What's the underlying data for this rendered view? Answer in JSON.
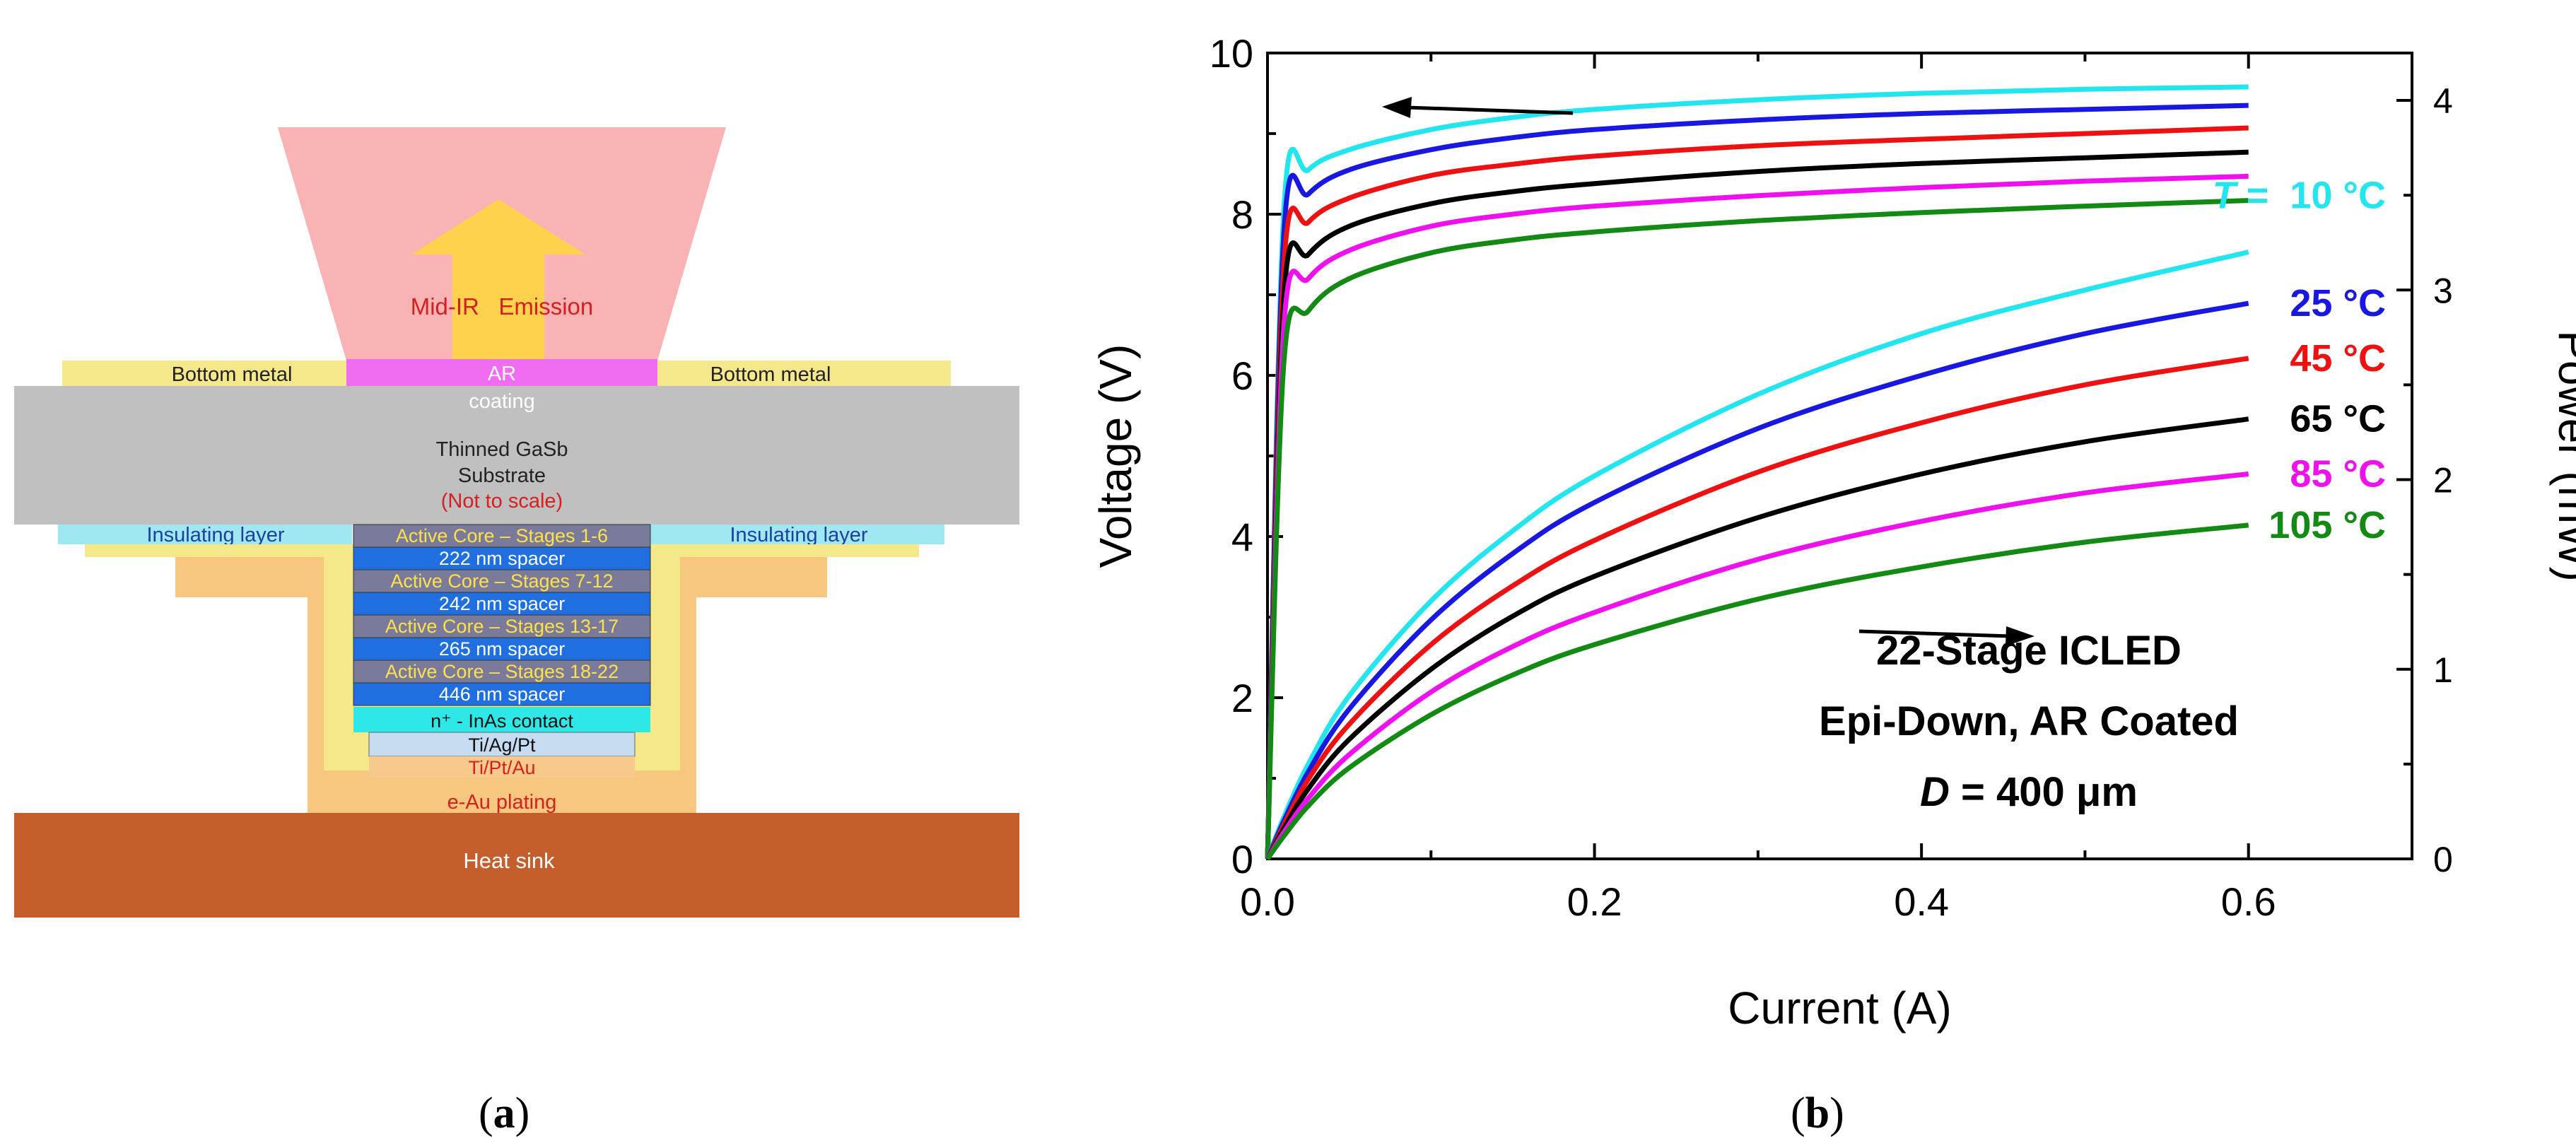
{
  "panel_a": {
    "label_open": "(",
    "label_letter": "a",
    "label_close": ")",
    "emission": "Mid-IR   Emission",
    "ar": "AR",
    "coating": "coating",
    "bottom_metal": "Bottom metal",
    "substrate_line1": "Thinned GaSb",
    "substrate_line2": "Substrate",
    "substrate_note": "(Not to scale)",
    "insulating": "Insulating layer",
    "layers": [
      {
        "text": "Active Core – Stages 1-6",
        "kind": "core"
      },
      {
        "text": "222 nm spacer",
        "kind": "spacer"
      },
      {
        "text": "Active Core – Stages 7-12",
        "kind": "core"
      },
      {
        "text": "242 nm spacer",
        "kind": "spacer"
      },
      {
        "text": "Active Core – Stages 13-17",
        "kind": "core"
      },
      {
        "text": "265 nm spacer",
        "kind": "spacer"
      },
      {
        "text": "Active Core – Stages 18-22",
        "kind": "core"
      },
      {
        "text": "446 nm spacer",
        "kind": "spacer"
      }
    ],
    "contact": "n⁺ - InAs contact",
    "tiagpt": "Ti/Ag/Pt",
    "tiptau": "Ti/Pt/Au",
    "plating": "e-Au plating",
    "heat_sink": "Heat sink",
    "colors": {
      "emission_cone": "#f9b3b5",
      "arrow": "#ffd24d",
      "ar_coating": "#f06cf0",
      "bottom_metal": "#f5e88a",
      "substrate": "#c0c0c0",
      "insulating": "#9fe8f2",
      "core": "#7a7a9a",
      "spacer": "#1f6fe0",
      "contact": "#2ee8e8",
      "tiagpt": "#c6dcf0",
      "tiptau": "#f7c98a",
      "plating": "#f8c77f",
      "heat_sink": "#c45f2d",
      "red_text": "#d42020",
      "yellow_text": "#ffe14a"
    }
  },
  "panel_b": {
    "label_open": "(",
    "label_letter": "b",
    "label_close": ")",
    "t_prefix": "T",
    "t_equals": " =  ",
    "caption_line1": "22-Stage ICLED",
    "caption_line2": "Epi-Down, AR Coated",
    "caption_d": "D",
    "caption_rest": " = 400 μm"
  },
  "chart_data": {
    "type": "line",
    "title": "",
    "xlabel": "Current (A)",
    "ylabel": "Voltage (V)",
    "y2label": "Power (mW)",
    "xlim": [
      0,
      0.7
    ],
    "ylim": [
      0,
      10
    ],
    "y2lim": [
      0,
      4.25
    ],
    "xticks": [
      "0.0",
      "0.2",
      "0.4",
      "0.6"
    ],
    "yticks": [
      "0",
      "2",
      "4",
      "6",
      "8",
      "10"
    ],
    "y2ticks": [
      "0",
      "1",
      "2",
      "3",
      "4"
    ],
    "x": [
      0.0,
      0.01,
      0.025,
      0.05,
      0.1,
      0.15,
      0.2,
      0.3,
      0.4,
      0.5,
      0.6
    ],
    "voltage_series": [
      {
        "name": "10 °C",
        "color": "#22e5f0",
        "values": [
          0,
          8.05,
          8.55,
          8.8,
          9.05,
          9.2,
          9.3,
          9.42,
          9.5,
          9.55,
          9.58
        ]
      },
      {
        "name": "25 °C",
        "color": "#1818e0",
        "values": [
          0,
          7.75,
          8.25,
          8.55,
          8.8,
          8.95,
          9.05,
          9.17,
          9.25,
          9.3,
          9.35
        ]
      },
      {
        "name": "45 °C",
        "color": "#ee1111",
        "values": [
          0,
          7.35,
          7.9,
          8.2,
          8.48,
          8.62,
          8.72,
          8.85,
          8.93,
          9.0,
          9.07
        ]
      },
      {
        "name": "65 °C",
        "color": "#000000",
        "values": [
          0,
          6.95,
          7.5,
          7.85,
          8.13,
          8.28,
          8.38,
          8.53,
          8.63,
          8.7,
          8.77
        ]
      },
      {
        "name": "85 °C",
        "color": "#ee11ee",
        "values": [
          0,
          6.6,
          7.2,
          7.55,
          7.85,
          8.0,
          8.1,
          8.23,
          8.33,
          8.41,
          8.47
        ]
      },
      {
        "name": "105 °C",
        "color": "#138a13",
        "values": [
          0,
          6.15,
          6.8,
          7.2,
          7.52,
          7.68,
          7.78,
          7.92,
          8.02,
          8.1,
          8.17
        ]
      }
    ],
    "power_series": [
      {
        "name": "10 °C",
        "color": "#22e5f0",
        "values": [
          0,
          0.22,
          0.5,
          0.86,
          1.36,
          1.73,
          2.02,
          2.45,
          2.77,
          3.0,
          3.2
        ]
      },
      {
        "name": "25 °C",
        "color": "#1818e0",
        "values": [
          0,
          0.2,
          0.46,
          0.79,
          1.26,
          1.61,
          1.88,
          2.27,
          2.55,
          2.77,
          2.93
        ]
      },
      {
        "name": "45 °C",
        "color": "#ee1111",
        "values": [
          0,
          0.18,
          0.42,
          0.71,
          1.13,
          1.44,
          1.68,
          2.04,
          2.3,
          2.5,
          2.64
        ]
      },
      {
        "name": "65 °C",
        "color": "#000000",
        "values": [
          0,
          0.16,
          0.37,
          0.63,
          1.0,
          1.28,
          1.49,
          1.8,
          2.03,
          2.2,
          2.32
        ]
      },
      {
        "name": "85 °C",
        "color": "#ee11ee",
        "values": [
          0,
          0.14,
          0.32,
          0.55,
          0.88,
          1.12,
          1.3,
          1.58,
          1.78,
          1.93,
          2.03
        ]
      },
      {
        "name": "105 °C",
        "color": "#138a13",
        "values": [
          0,
          0.12,
          0.28,
          0.48,
          0.76,
          0.97,
          1.13,
          1.37,
          1.54,
          1.67,
          1.76
        ]
      }
    ]
  }
}
